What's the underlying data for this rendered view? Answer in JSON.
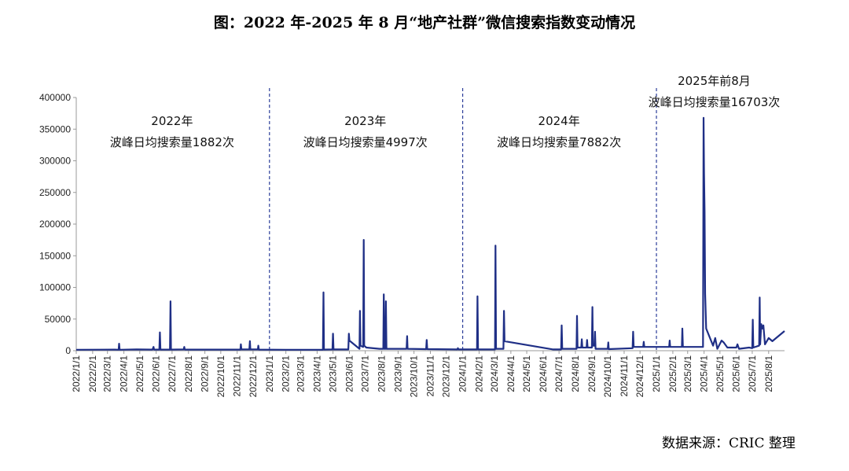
{
  "title": "图：2022 年-2025 年 8 月“地产社群”微信搜索指数变动情况",
  "source": "数据来源：CRIC 整理",
  "colors": {
    "line": "#1f2f86",
    "divider": "#2b3d99",
    "axis": "#999999"
  },
  "chart_data": {
    "type": "line",
    "title": "图：2022 年-2025 年 8 月“地产社群”微信搜索指数变动情况",
    "xlabel": "",
    "ylabel": "",
    "ylim": [
      0,
      400000
    ],
    "yticks": [
      0,
      50000,
      100000,
      150000,
      200000,
      250000,
      300000,
      350000,
      400000
    ],
    "xlim": [
      "2022-01-01",
      "2025-08-31"
    ],
    "xtick_labels": [
      "2022/1/1",
      "2022/2/1",
      "2022/3/1",
      "2022/4/1",
      "2022/5/1",
      "2022/6/1",
      "2022/7/1",
      "2022/8/1",
      "2022/9/1",
      "2022/10/1",
      "2022/11/1",
      "2022/12/1",
      "2023/1/1",
      "2023/2/1",
      "2023/3/1",
      "2023/4/1",
      "2023/5/1",
      "2023/6/1",
      "2023/7/1",
      "2023/8/1",
      "2023/9/1",
      "2023/10/1",
      "2023/11/1",
      "2023/12/1",
      "2024/1/1",
      "2024/2/1",
      "2024/3/1",
      "2024/4/1",
      "2024/5/1",
      "2024/6/1",
      "2024/7/1",
      "2024/8/1",
      "2024/9/1",
      "2024/10/1",
      "2024/11/1",
      "2024/12/1",
      "2025/1/1",
      "2025/2/1",
      "2025/3/1",
      "2025/4/1",
      "2025/5/1",
      "2025/6/1",
      "2025/7/1",
      "2025/8/1"
    ],
    "grid": false,
    "dividers": [
      "2023-01-01",
      "2024-01-01",
      "2025-01-01"
    ],
    "annotations": [
      {
        "x": "2022-07-01",
        "lines": [
          "2022年",
          "波峰日均搜索量1882次"
        ]
      },
      {
        "x": "2023-07-01",
        "lines": [
          "2023年",
          "波峰日均搜索量4997次"
        ]
      },
      {
        "x": "2024-07-01",
        "lines": [
          "2024年",
          "波峰日均搜索量7882次"
        ]
      },
      {
        "x": "2025-04-20",
        "lines": [
          "2025年前8月",
          "波峰日均搜索量16703次"
        ]
      }
    ],
    "series": [
      {
        "values": [
          [
            "2022-01-01",
            1500
          ],
          [
            "2022-03-15",
            1800
          ],
          [
            "2022-03-22",
            1500
          ],
          [
            "2022-03-23",
            11000
          ],
          [
            "2022-03-24",
            1500
          ],
          [
            "2022-04-25",
            2000
          ],
          [
            "2022-05-25",
            1800
          ],
          [
            "2022-05-27",
            6000
          ],
          [
            "2022-05-28",
            1800
          ],
          [
            "2022-06-07",
            1800
          ],
          [
            "2022-06-08",
            29000
          ],
          [
            "2022-06-09",
            1800
          ],
          [
            "2022-06-27",
            1800
          ],
          [
            "2022-06-28",
            78000
          ],
          [
            "2022-06-29",
            1800
          ],
          [
            "2022-07-23",
            2000
          ],
          [
            "2022-07-24",
            6000
          ],
          [
            "2022-07-25",
            1800
          ],
          [
            "2022-10-01",
            1800
          ],
          [
            "2022-11-07",
            1800
          ],
          [
            "2022-11-08",
            10000
          ],
          [
            "2022-11-09",
            2000
          ],
          [
            "2022-11-24",
            2000
          ],
          [
            "2022-11-25",
            15000
          ],
          [
            "2022-11-26",
            2000
          ],
          [
            "2022-12-10",
            2000
          ],
          [
            "2022-12-11",
            8000
          ],
          [
            "2022-12-12",
            1800
          ],
          [
            "2023-02-01",
            1500
          ],
          [
            "2023-04-12",
            1500
          ],
          [
            "2023-04-13",
            92000
          ],
          [
            "2023-04-14",
            1800
          ],
          [
            "2023-04-30",
            2000
          ],
          [
            "2023-05-01",
            27000
          ],
          [
            "2023-05-02",
            2000
          ],
          [
            "2023-05-30",
            2000
          ],
          [
            "2023-05-31",
            27000
          ],
          [
            "2023-06-01",
            16000
          ],
          [
            "2023-06-20",
            3000
          ],
          [
            "2023-06-21",
            63000
          ],
          [
            "2023-06-22",
            8000
          ],
          [
            "2023-06-27",
            6000
          ],
          [
            "2023-06-28",
            175000
          ],
          [
            "2023-06-29",
            8000
          ],
          [
            "2023-07-03",
            5000
          ],
          [
            "2023-07-28",
            3000
          ],
          [
            "2023-08-04",
            3000
          ],
          [
            "2023-08-05",
            89000
          ],
          [
            "2023-08-06",
            3000
          ],
          [
            "2023-08-08",
            3000
          ],
          [
            "2023-08-09",
            78000
          ],
          [
            "2023-08-10",
            3000
          ],
          [
            "2023-09-17",
            3000
          ],
          [
            "2023-09-18",
            23000
          ],
          [
            "2023-09-19",
            3000
          ],
          [
            "2023-10-24",
            2500
          ],
          [
            "2023-10-25",
            17000
          ],
          [
            "2023-10-26",
            2500
          ],
          [
            "2023-12-22",
            2000
          ],
          [
            "2023-12-23",
            4000
          ],
          [
            "2023-12-24",
            2000
          ],
          [
            "2024-01-28",
            2000
          ],
          [
            "2024-01-29",
            86000
          ],
          [
            "2024-01-30",
            2000
          ],
          [
            "2024-03-02",
            2000
          ],
          [
            "2024-03-03",
            166000
          ],
          [
            "2024-03-04",
            3000
          ],
          [
            "2024-03-18",
            3000
          ],
          [
            "2024-03-19",
            63000
          ],
          [
            "2024-03-20",
            15000
          ],
          [
            "2024-06-20",
            2000
          ],
          [
            "2024-07-05",
            2000
          ],
          [
            "2024-07-06",
            40000
          ],
          [
            "2024-07-07",
            3000
          ],
          [
            "2024-08-03",
            3000
          ],
          [
            "2024-08-04",
            55000
          ],
          [
            "2024-08-05",
            5000
          ],
          [
            "2024-08-12",
            5000
          ],
          [
            "2024-08-13",
            18000
          ],
          [
            "2024-08-14",
            5000
          ],
          [
            "2024-08-22",
            5000
          ],
          [
            "2024-08-23",
            17000
          ],
          [
            "2024-08-24",
            5000
          ],
          [
            "2024-09-01",
            5000
          ],
          [
            "2024-09-02",
            69000
          ],
          [
            "2024-09-03",
            8000
          ],
          [
            "2024-09-06",
            8000
          ],
          [
            "2024-09-07",
            30000
          ],
          [
            "2024-09-08",
            3000
          ],
          [
            "2024-10-01",
            3000
          ],
          [
            "2024-10-02",
            13000
          ],
          [
            "2024-10-03",
            2500
          ],
          [
            "2024-11-17",
            4000
          ],
          [
            "2024-11-18",
            30000
          ],
          [
            "2024-11-19",
            6000
          ],
          [
            "2024-12-07",
            6000
          ],
          [
            "2024-12-08",
            14000
          ],
          [
            "2024-12-09",
            6000
          ],
          [
            "2025-01-25",
            6000
          ],
          [
            "2025-01-26",
            16000
          ],
          [
            "2025-01-27",
            6000
          ],
          [
            "2025-02-18",
            6000
          ],
          [
            "2025-02-19",
            35000
          ],
          [
            "2025-02-20",
            6000
          ],
          [
            "2025-03-30",
            6000
          ],
          [
            "2025-03-31",
            368000
          ],
          [
            "2025-04-01",
            280000
          ],
          [
            "2025-04-02",
            220000
          ],
          [
            "2025-04-03",
            90000
          ],
          [
            "2025-04-05",
            35000
          ],
          [
            "2025-04-18",
            8000
          ],
          [
            "2025-04-22",
            20000
          ],
          [
            "2025-04-26",
            3000
          ],
          [
            "2025-05-04",
            16000
          ],
          [
            "2025-05-08",
            13000
          ],
          [
            "2025-05-15",
            5000
          ],
          [
            "2025-06-01",
            5000
          ],
          [
            "2025-06-03",
            10000
          ],
          [
            "2025-06-06",
            3000
          ],
          [
            "2025-06-25",
            5000
          ],
          [
            "2025-07-01",
            4000
          ],
          [
            "2025-07-02",
            49000
          ],
          [
            "2025-07-03",
            5000
          ],
          [
            "2025-07-14",
            8000
          ],
          [
            "2025-07-15",
            84000
          ],
          [
            "2025-07-16",
            10000
          ],
          [
            "2025-07-18",
            42000
          ],
          [
            "2025-07-20",
            35000
          ],
          [
            "2025-07-22",
            40000
          ],
          [
            "2025-07-25",
            10000
          ],
          [
            "2025-08-01",
            20000
          ],
          [
            "2025-08-08",
            15000
          ],
          [
            "2025-08-31",
            31000
          ]
        ]
      }
    ]
  }
}
